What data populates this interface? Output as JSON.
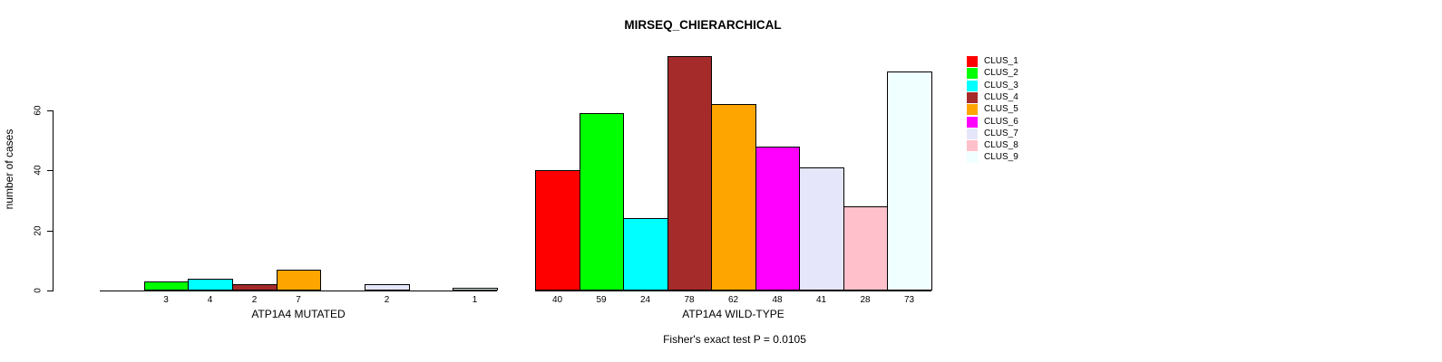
{
  "chart_data": {
    "type": "bar",
    "title": "MIRSEQ_CHIERARCHICAL",
    "ylabel": "number of cases",
    "xlabel": "",
    "ylim": [
      0,
      80
    ],
    "yticks": [
      0,
      20,
      40,
      60
    ],
    "grid": false,
    "legend_position": "right",
    "clusters": [
      {
        "name": "CLUS_1",
        "color": "#FF0000"
      },
      {
        "name": "CLUS_2",
        "color": "#00FF00"
      },
      {
        "name": "CLUS_3",
        "color": "#00FFFF"
      },
      {
        "name": "CLUS_4",
        "color": "#A52A2A"
      },
      {
        "name": "CLUS_5",
        "color": "#FFA500"
      },
      {
        "name": "CLUS_6",
        "color": "#FF00FF"
      },
      {
        "name": "CLUS_7",
        "color": "#E6E6FA"
      },
      {
        "name": "CLUS_8",
        "color": "#FFC0CB"
      },
      {
        "name": "CLUS_9",
        "color": "#F0FFFF"
      }
    ],
    "groups": [
      {
        "label": "ATP1A4 MUTATED",
        "values": [
          0,
          3,
          4,
          2,
          7,
          0,
          2,
          0,
          1
        ]
      },
      {
        "label": "ATP1A4 WILD-TYPE",
        "values": [
          40,
          59,
          24,
          78,
          62,
          48,
          41,
          28,
          73
        ]
      }
    ],
    "annotation": "Fisher's exact test P = 0.0105",
    "bar_border_color": "#000000"
  }
}
